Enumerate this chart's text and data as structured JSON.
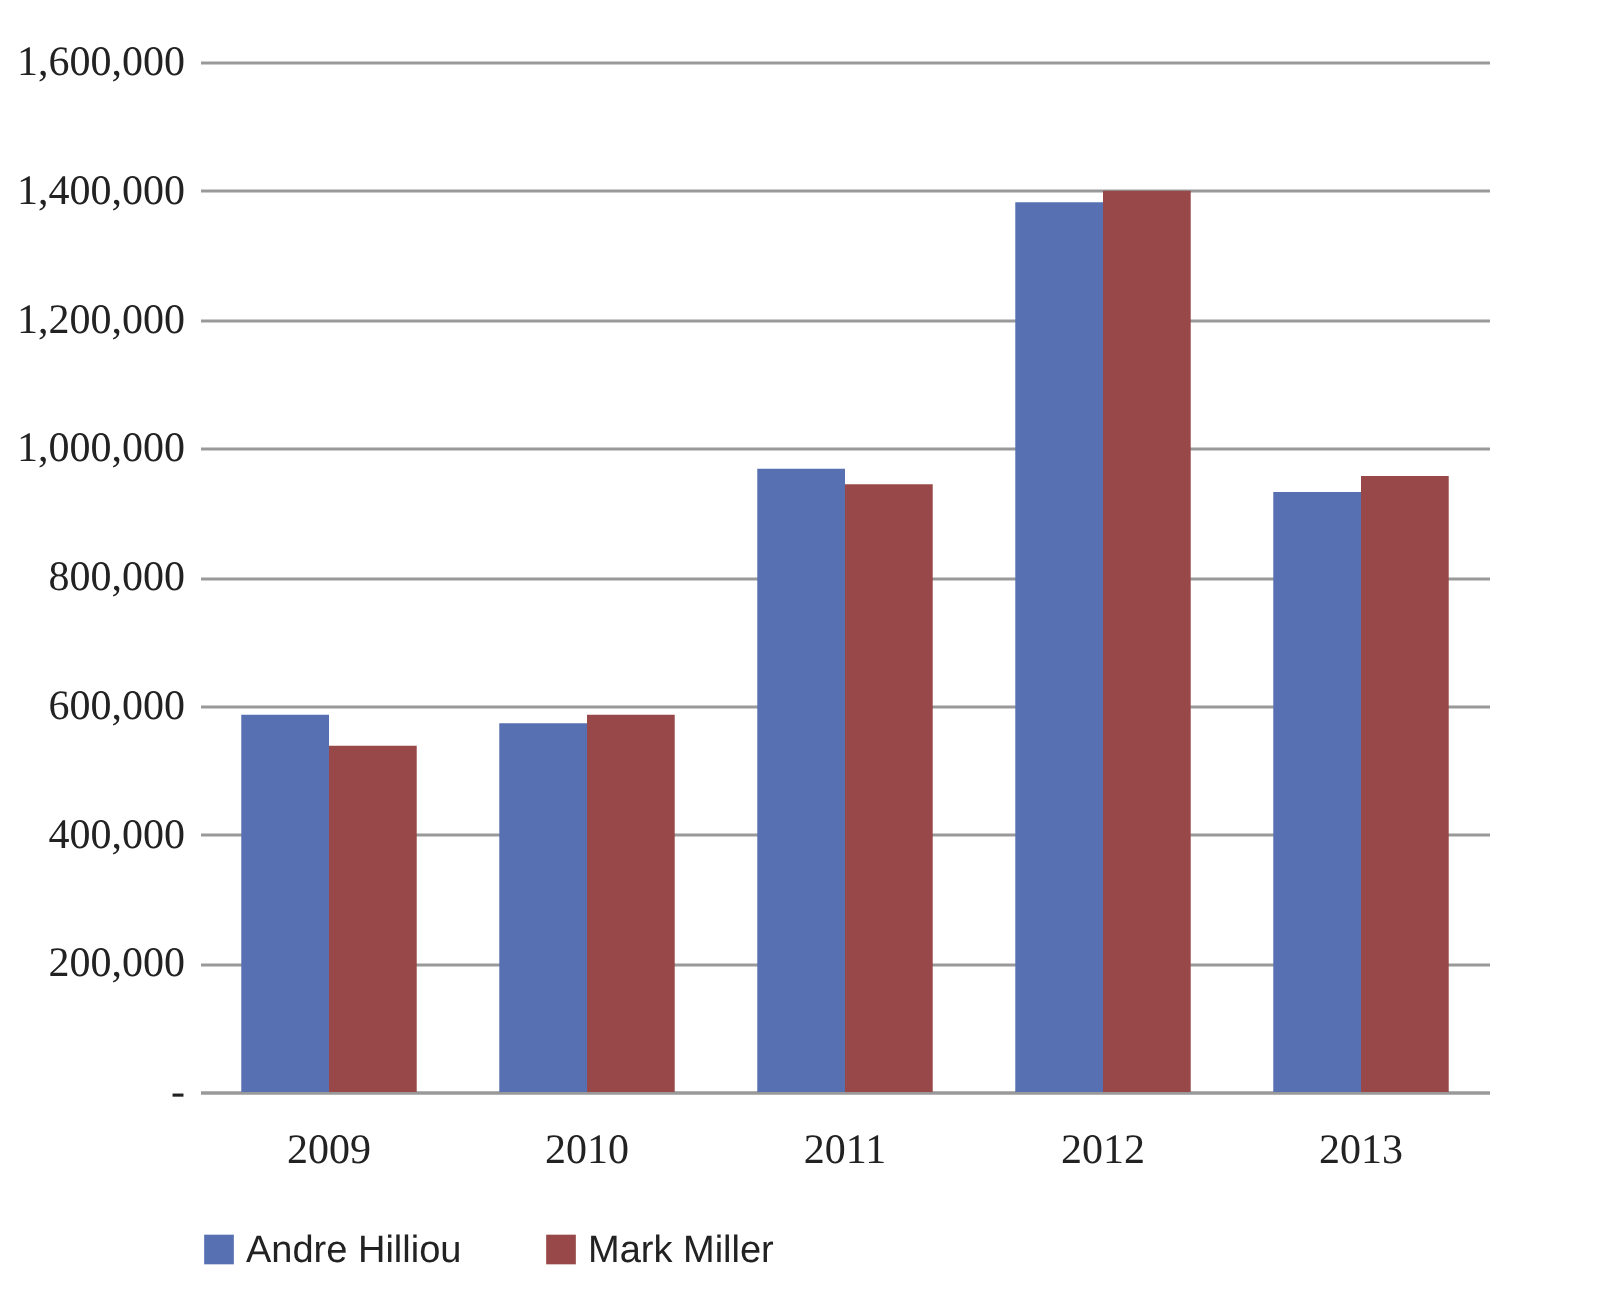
{
  "chart_data": {
    "type": "bar",
    "categories": [
      "2009",
      "2010",
      "2011",
      "2012",
      "2013"
    ],
    "series": [
      {
        "name": "Andre Hilliou",
        "color": "#5670b2",
        "values": [
          586000,
          573000,
          968000,
          1382000,
          932000
        ]
      },
      {
        "name": "Mark Miller",
        "color": "#984848",
        "values": [
          538000,
          586000,
          944000,
          1400000,
          957000
        ]
      }
    ],
    "ylim": [
      0,
      1600000
    ],
    "yticks": [
      {
        "value": 0,
        "label": "-"
      },
      {
        "value": 200000,
        "label": "200,000"
      },
      {
        "value": 400000,
        "label": "400,000"
      },
      {
        "value": 600000,
        "label": "600,000"
      },
      {
        "value": 800000,
        "label": "800,000"
      },
      {
        "value": 1000000,
        "label": "1,000,000"
      },
      {
        "value": 1200000,
        "label": "1,200,000"
      },
      {
        "value": 1400000,
        "label": "1,400,000"
      },
      {
        "value": 1600000,
        "label": "1,600,000"
      }
    ],
    "grid": "y",
    "legend": "bottom"
  }
}
